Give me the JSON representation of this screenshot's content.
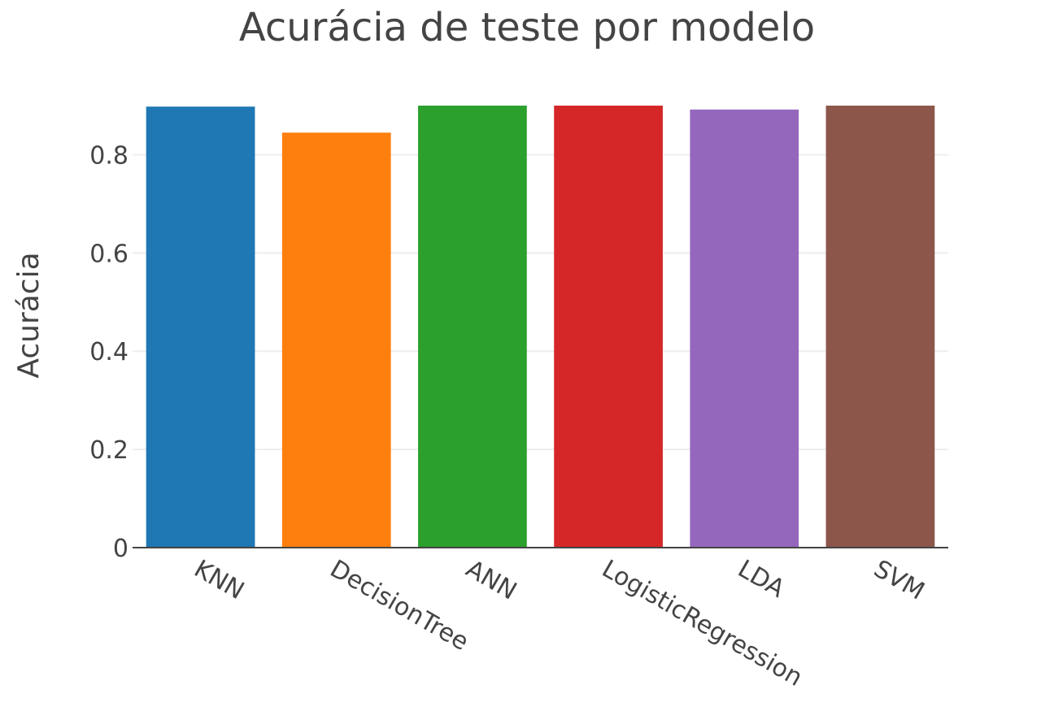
{
  "chart_data": {
    "type": "bar",
    "title": "Acurácia de teste por modelo",
    "xlabel": "",
    "ylabel": "Acurácia",
    "categories": [
      "KNN",
      "DecisionTree",
      "ANN",
      "LogisticRegression",
      "LDA",
      "SVM"
    ],
    "values": [
      0.898,
      0.845,
      0.9,
      0.9,
      0.892,
      0.9
    ],
    "colors": [
      "#1f77b4",
      "#ff7f0e",
      "#2ca02c",
      "#d62728",
      "#9467bd",
      "#8c564b"
    ],
    "ylim": [
      0,
      0.9
    ],
    "yticks": [
      0,
      0.2,
      0.4,
      0.6,
      0.8
    ],
    "ytick_labels": [
      "0",
      "0.2",
      "0.4",
      "0.6",
      "0.8"
    ],
    "grid": true,
    "legend": "none"
  }
}
